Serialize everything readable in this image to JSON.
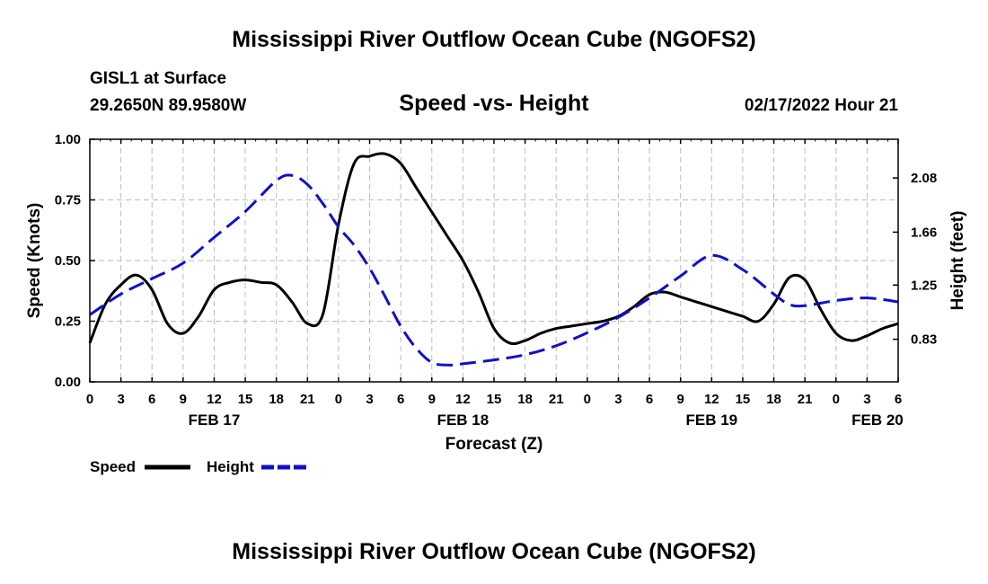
{
  "main_title": "Mississippi River Outflow Ocean Cube (NGOFS2)",
  "footer_title": "Mississippi River Outflow Ocean Cube (NGOFS2)",
  "station": {
    "name": "GISL1 at Surface",
    "coords": "29.2650N  89.9580W"
  },
  "date_label": "02/17/2022 Hour 21",
  "legend": {
    "speed_label": "Speed",
    "height_label": "Height"
  },
  "colors": {
    "speed": "#000000",
    "height": "#1010c8",
    "grid": "#bbbbbb"
  },
  "chart_data": {
    "type": "line",
    "title": "Speed -vs- Height",
    "xlabel": "Forecast (Z)",
    "ylabel": "Speed (Knots)",
    "y2label": "Height (feet)",
    "x_unit": "hours since FEB 17 00Z",
    "xlim": [
      0,
      78
    ],
    "ylim": [
      0,
      1.0
    ],
    "y2lim": [
      0.5,
      2.38
    ],
    "x_ticks": [
      0,
      3,
      6,
      9,
      12,
      15,
      18,
      21,
      24,
      27,
      30,
      33,
      36,
      39,
      42,
      45,
      48,
      51,
      54,
      57,
      60,
      63,
      66,
      69,
      72,
      75,
      78
    ],
    "x_tick_labels": [
      "0",
      "3",
      "6",
      "9",
      "12",
      "15",
      "18",
      "21",
      "0",
      "3",
      "6",
      "9",
      "12",
      "15",
      "18",
      "21",
      "0",
      "3",
      "6",
      "9",
      "12",
      "15",
      "18",
      "21",
      "0",
      "3",
      "6"
    ],
    "day_labels": [
      {
        "x": 12,
        "label": "FEB 17"
      },
      {
        "x": 36,
        "label": "FEB 18"
      },
      {
        "x": 60,
        "label": "FEB 19"
      },
      {
        "x": 76,
        "label": "FEB 20"
      }
    ],
    "y_ticks": [
      0,
      0.25,
      0.5,
      0.75,
      1.0
    ],
    "y_tick_labels": [
      "0.00",
      "0.25",
      "0.50",
      "0.75",
      "1.00"
    ],
    "y2_ticks": [
      0.83,
      1.25,
      1.66,
      2.08
    ],
    "y2_tick_labels": [
      "0.83",
      "1.25",
      "1.66",
      "2.08"
    ],
    "series": [
      {
        "name": "Speed",
        "axis": "left",
        "style": "solid",
        "x": [
          0,
          1.5,
          3,
          4.5,
          6,
          7.5,
          9,
          10.5,
          12,
          13.5,
          15,
          16.5,
          18,
          19.5,
          21,
          22.5,
          24,
          25.5,
          27,
          28.5,
          30,
          31.5,
          33,
          34.5,
          36,
          37.5,
          39,
          40.5,
          42,
          43.5,
          45,
          46.5,
          48,
          49.5,
          51,
          52.5,
          54,
          55.5,
          57,
          58.5,
          60,
          61.5,
          63,
          64.5,
          66,
          67.5,
          69,
          70.5,
          72,
          73.5,
          75,
          76.5,
          78
        ],
        "values": [
          0.16,
          0.32,
          0.4,
          0.44,
          0.38,
          0.24,
          0.2,
          0.27,
          0.38,
          0.41,
          0.42,
          0.41,
          0.4,
          0.33,
          0.24,
          0.28,
          0.65,
          0.9,
          0.93,
          0.94,
          0.9,
          0.8,
          0.7,
          0.6,
          0.5,
          0.37,
          0.22,
          0.16,
          0.17,
          0.2,
          0.22,
          0.23,
          0.24,
          0.25,
          0.27,
          0.31,
          0.36,
          0.37,
          0.35,
          0.33,
          0.31,
          0.29,
          0.27,
          0.25,
          0.32,
          0.43,
          0.42,
          0.3,
          0.2,
          0.17,
          0.19,
          0.22,
          0.24
        ]
      },
      {
        "name": "Height",
        "axis": "right",
        "style": "dashed",
        "x": [
          0,
          3,
          6,
          9,
          12,
          15,
          18,
          19.5,
          21,
          22.5,
          24,
          25.5,
          27,
          28.5,
          30,
          31.5,
          33,
          34.5,
          36,
          39,
          42,
          45,
          48,
          51,
          54,
          57,
          60,
          63,
          66,
          67.5,
          69,
          72,
          75,
          78
        ],
        "values": [
          1.02,
          1.18,
          1.3,
          1.42,
          1.62,
          1.82,
          2.06,
          2.1,
          2.03,
          1.88,
          1.7,
          1.56,
          1.38,
          1.16,
          0.93,
          0.76,
          0.65,
          0.63,
          0.64,
          0.67,
          0.71,
          0.78,
          0.88,
          1.0,
          1.15,
          1.32,
          1.48,
          1.37,
          1.18,
          1.1,
          1.09,
          1.13,
          1.15,
          1.12
        ]
      }
    ]
  }
}
